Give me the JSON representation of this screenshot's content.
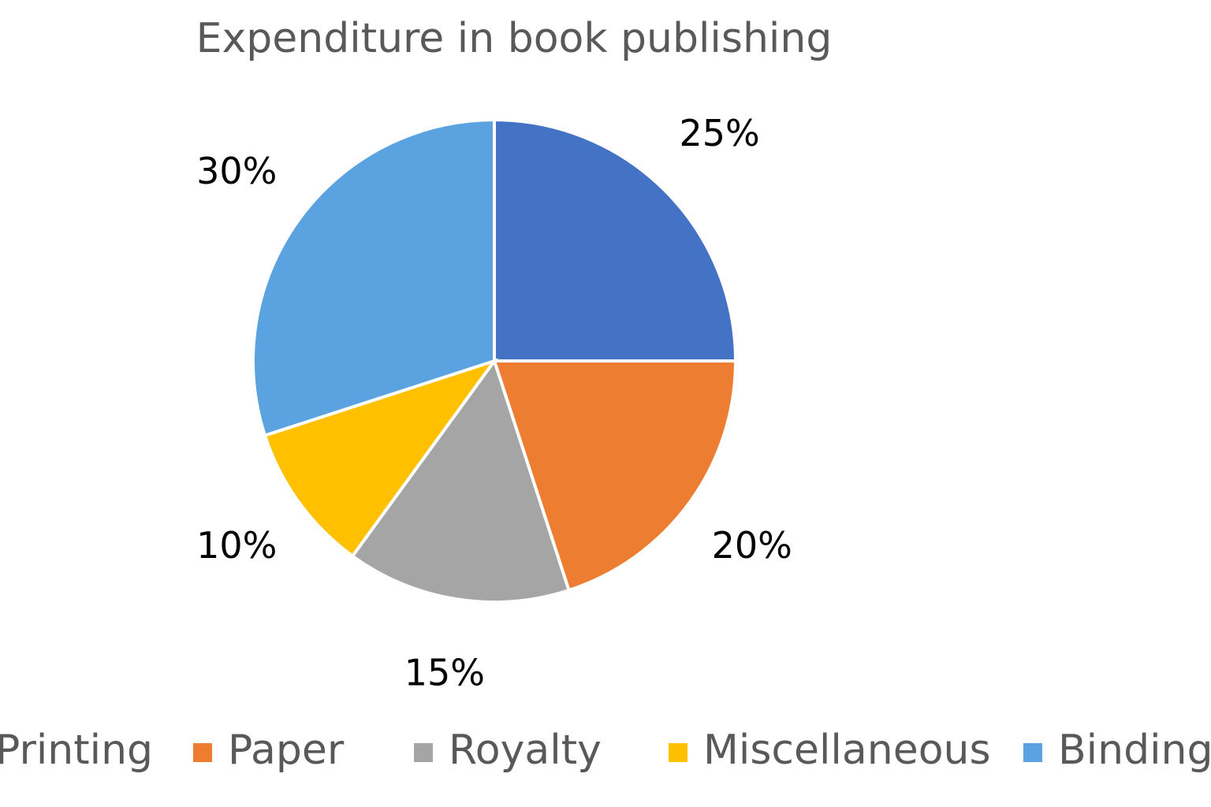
{
  "chart_data": {
    "type": "pie",
    "title": "Expenditure in book publishing",
    "categories": [
      "Printing",
      "Paper",
      "Royalty",
      "Miscellaneous",
      "Binding"
    ],
    "values": [
      25,
      20,
      15,
      10,
      30
    ],
    "value_labels": [
      "25%",
      "20%",
      "15%",
      "10%",
      "30%"
    ],
    "colors": [
      "#4472c4",
      "#ed7d31",
      "#a5a5a5",
      "#ffc000",
      "#5ba3e0"
    ],
    "legend": "bottom"
  }
}
